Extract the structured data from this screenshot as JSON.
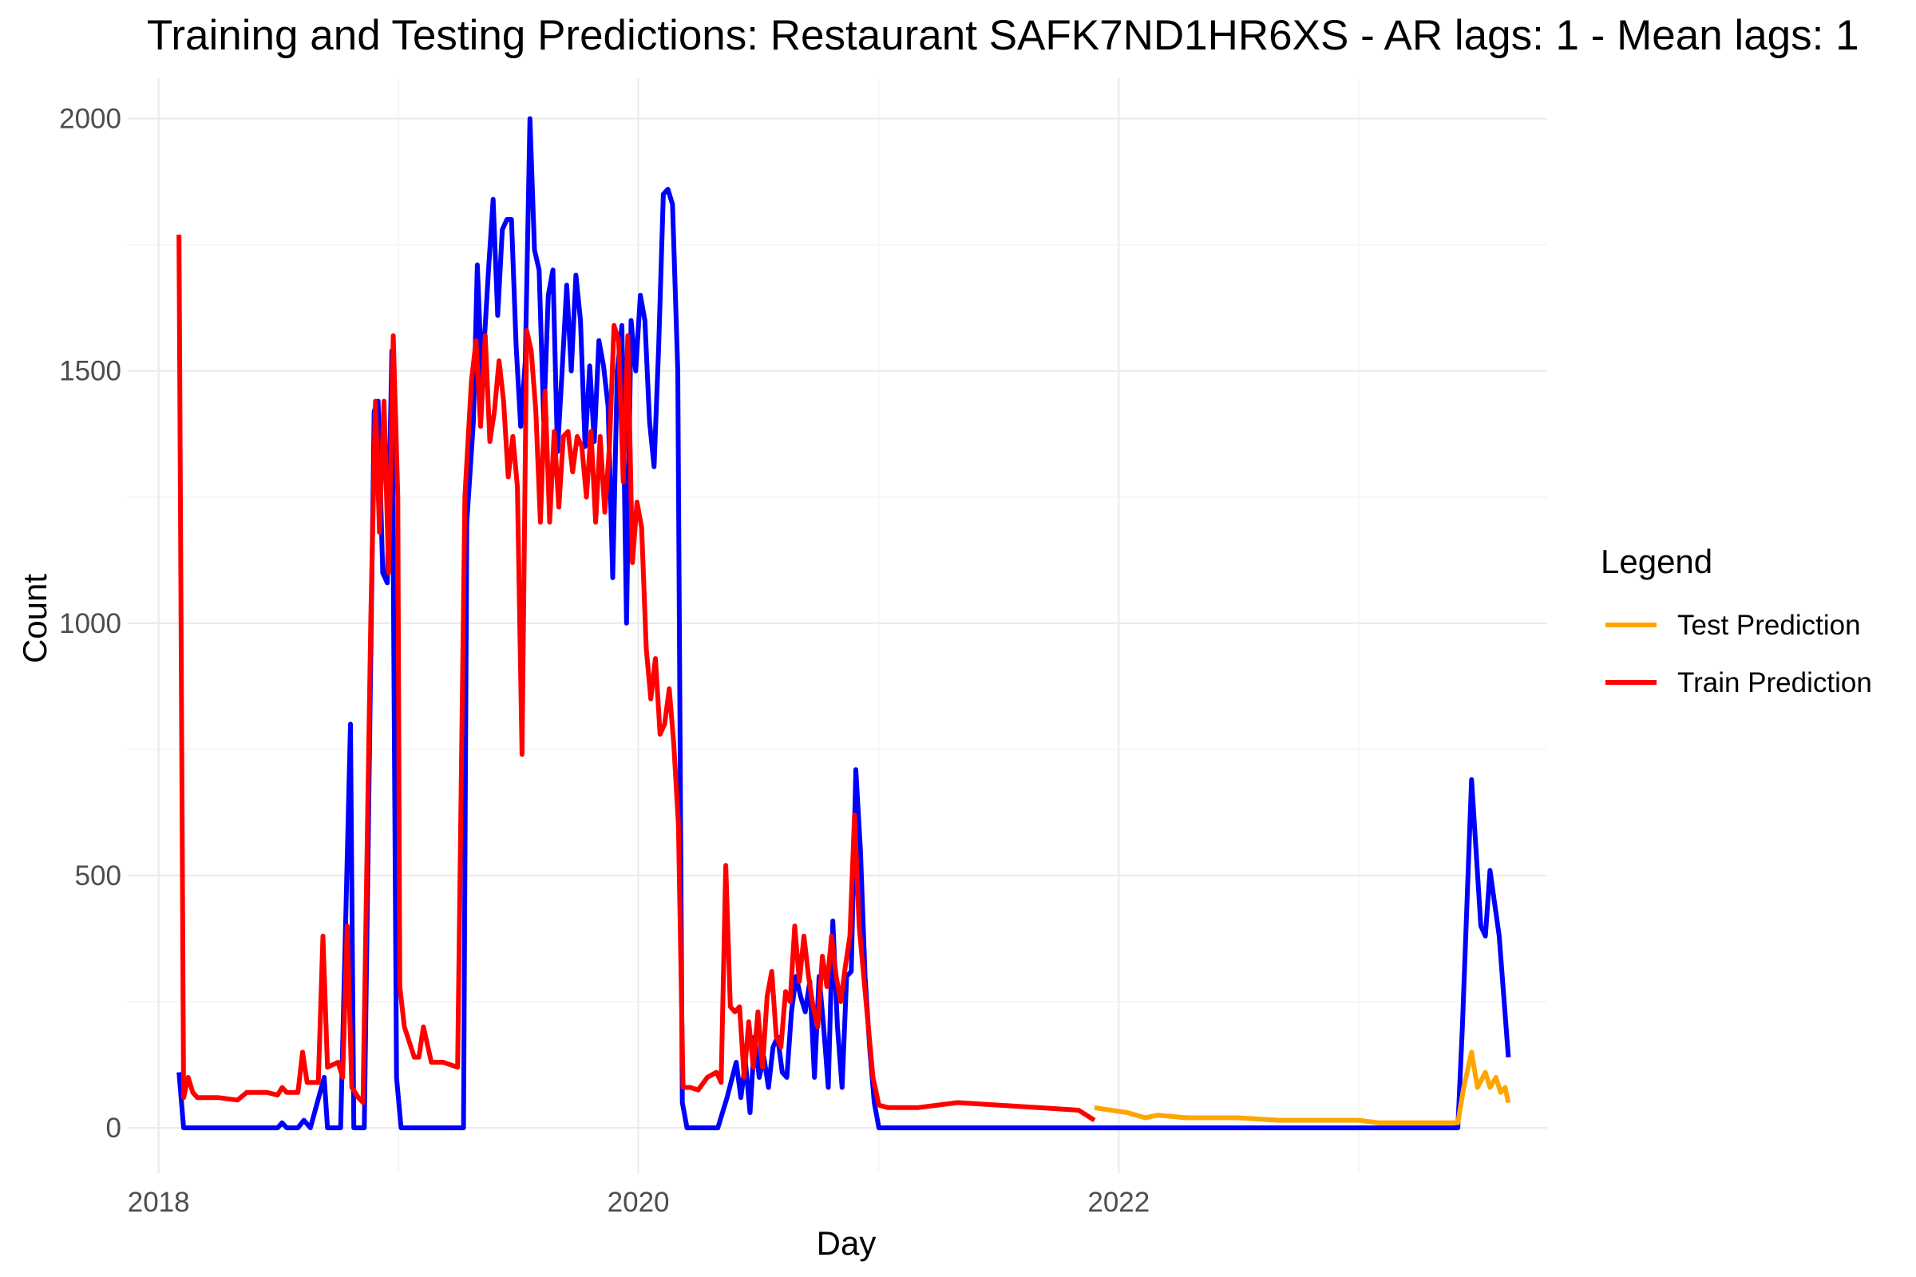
{
  "chart_data": {
    "type": "line",
    "title": "Training and Testing Predictions: Restaurant SAFK7ND1HR6XS - AR lags: 1 - Mean lags: 1",
    "xlabel": "Day",
    "ylabel": "Count",
    "x_type": "date",
    "xlim": [
      "2017-11-15",
      "2023-10-15"
    ],
    "ylim": [
      -90,
      2080
    ],
    "x_ticks": [
      "2018",
      "2020",
      "2022"
    ],
    "x_tick_dates": [
      "2018-01-01",
      "2020-01-01",
      "2022-01-01"
    ],
    "y_ticks": [
      0,
      500,
      1000,
      1500,
      2000
    ],
    "grid": true,
    "legend": {
      "title": "Legend",
      "placement": "right",
      "entries": [
        "Test Prediction",
        "Train Prediction"
      ]
    },
    "series": [
      {
        "key": "actual",
        "color": "#0000ff",
        "points": [
          [
            "2018-02-01",
            110
          ],
          [
            "2018-02-08",
            0
          ],
          [
            "2018-07-01",
            0
          ],
          [
            "2018-07-08",
            10
          ],
          [
            "2018-07-15",
            0
          ],
          [
            "2018-08-01",
            0
          ],
          [
            "2018-08-10",
            15
          ],
          [
            "2018-08-20",
            0
          ],
          [
            "2018-09-10",
            100
          ],
          [
            "2018-09-15",
            0
          ],
          [
            "2018-10-05",
            0
          ],
          [
            "2018-10-20",
            800
          ],
          [
            "2018-10-25",
            0
          ],
          [
            "2018-11-05",
            0
          ],
          [
            "2018-11-10",
            0
          ],
          [
            "2018-11-25",
            1420
          ],
          [
            "2018-12-01",
            1440
          ],
          [
            "2018-12-08",
            1100
          ],
          [
            "2018-12-15",
            1080
          ],
          [
            "2018-12-22",
            1540
          ],
          [
            "2018-12-29",
            100
          ],
          [
            "2019-01-05",
            0
          ],
          [
            "2019-04-10",
            0
          ],
          [
            "2019-04-15",
            1200
          ],
          [
            "2019-04-25",
            1400
          ],
          [
            "2019-05-01",
            1710
          ],
          [
            "2019-05-08",
            1480
          ],
          [
            "2019-05-18",
            1700
          ],
          [
            "2019-05-25",
            1840
          ],
          [
            "2019-06-01",
            1610
          ],
          [
            "2019-06-08",
            1780
          ],
          [
            "2019-06-15",
            1800
          ],
          [
            "2019-06-22",
            1800
          ],
          [
            "2019-06-29",
            1550
          ],
          [
            "2019-07-06",
            1390
          ],
          [
            "2019-07-13",
            1520
          ],
          [
            "2019-07-20",
            2000
          ],
          [
            "2019-07-27",
            1740
          ],
          [
            "2019-08-03",
            1700
          ],
          [
            "2019-08-10",
            1400
          ],
          [
            "2019-08-17",
            1650
          ],
          [
            "2019-08-24",
            1700
          ],
          [
            "2019-08-31",
            1340
          ],
          [
            "2019-09-07",
            1500
          ],
          [
            "2019-09-14",
            1670
          ],
          [
            "2019-09-21",
            1500
          ],
          [
            "2019-09-28",
            1690
          ],
          [
            "2019-10-05",
            1600
          ],
          [
            "2019-10-12",
            1350
          ],
          [
            "2019-10-19",
            1510
          ],
          [
            "2019-10-26",
            1360
          ],
          [
            "2019-11-02",
            1560
          ],
          [
            "2019-11-09",
            1510
          ],
          [
            "2019-11-16",
            1430
          ],
          [
            "2019-11-23",
            1090
          ],
          [
            "2019-11-30",
            1500
          ],
          [
            "2019-12-07",
            1590
          ],
          [
            "2019-12-14",
            1000
          ],
          [
            "2019-12-21",
            1600
          ],
          [
            "2019-12-28",
            1500
          ],
          [
            "2020-01-04",
            1650
          ],
          [
            "2020-01-11",
            1600
          ],
          [
            "2020-01-18",
            1400
          ],
          [
            "2020-01-25",
            1310
          ],
          [
            "2020-02-01",
            1550
          ],
          [
            "2020-02-08",
            1850
          ],
          [
            "2020-02-15",
            1860
          ],
          [
            "2020-02-22",
            1830
          ],
          [
            "2020-03-01",
            1500
          ],
          [
            "2020-03-08",
            50
          ],
          [
            "2020-03-15",
            0
          ],
          [
            "2020-05-01",
            0
          ],
          [
            "2020-05-15",
            60
          ],
          [
            "2020-05-29",
            130
          ],
          [
            "2020-06-05",
            60
          ],
          [
            "2020-06-12",
            130
          ],
          [
            "2020-06-19",
            30
          ],
          [
            "2020-06-26",
            180
          ],
          [
            "2020-07-03",
            100
          ],
          [
            "2020-07-10",
            140
          ],
          [
            "2020-07-17",
            80
          ],
          [
            "2020-07-24",
            160
          ],
          [
            "2020-07-31",
            180
          ],
          [
            "2020-08-07",
            110
          ],
          [
            "2020-08-14",
            100
          ],
          [
            "2020-08-21",
            230
          ],
          [
            "2020-08-28",
            300
          ],
          [
            "2020-09-04",
            260
          ],
          [
            "2020-09-11",
            230
          ],
          [
            "2020-09-18",
            290
          ],
          [
            "2020-09-25",
            100
          ],
          [
            "2020-10-02",
            300
          ],
          [
            "2020-10-09",
            200
          ],
          [
            "2020-10-16",
            80
          ],
          [
            "2020-10-23",
            410
          ],
          [
            "2020-10-30",
            200
          ],
          [
            "2020-11-06",
            80
          ],
          [
            "2020-11-13",
            300
          ],
          [
            "2020-11-20",
            310
          ],
          [
            "2020-11-27",
            710
          ],
          [
            "2020-12-04",
            550
          ],
          [
            "2020-12-11",
            300
          ],
          [
            "2020-12-18",
            160
          ],
          [
            "2020-12-25",
            50
          ],
          [
            "2021-01-01",
            0
          ],
          [
            "2023-06-01",
            0
          ],
          [
            "2023-06-08",
            200
          ],
          [
            "2023-06-22",
            690
          ],
          [
            "2023-07-06",
            400
          ],
          [
            "2023-07-13",
            380
          ],
          [
            "2023-07-20",
            510
          ],
          [
            "2023-08-03",
            380
          ],
          [
            "2023-08-17",
            140
          ]
        ]
      },
      {
        "key": "train",
        "name": "Train Prediction",
        "color": "#ff0000",
        "points": [
          [
            "2018-02-01",
            1770
          ],
          [
            "2018-02-08",
            60
          ],
          [
            "2018-02-15",
            100
          ],
          [
            "2018-02-22",
            70
          ],
          [
            "2018-03-01",
            60
          ],
          [
            "2018-04-01",
            60
          ],
          [
            "2018-05-01",
            55
          ],
          [
            "2018-05-15",
            70
          ],
          [
            "2018-06-15",
            70
          ],
          [
            "2018-07-01",
            65
          ],
          [
            "2018-07-08",
            80
          ],
          [
            "2018-07-15",
            70
          ],
          [
            "2018-08-01",
            70
          ],
          [
            "2018-08-08",
            150
          ],
          [
            "2018-08-15",
            90
          ],
          [
            "2018-09-01",
            90
          ],
          [
            "2018-09-08",
            380
          ],
          [
            "2018-09-15",
            120
          ],
          [
            "2018-10-01",
            130
          ],
          [
            "2018-10-08",
            100
          ],
          [
            "2018-10-15",
            400
          ],
          [
            "2018-10-22",
            80
          ],
          [
            "2018-11-01",
            60
          ],
          [
            "2018-11-08",
            50
          ],
          [
            "2018-11-20",
            1020
          ],
          [
            "2018-11-27",
            1440
          ],
          [
            "2018-12-03",
            1180
          ],
          [
            "2018-12-10",
            1440
          ],
          [
            "2018-12-17",
            1100
          ],
          [
            "2018-12-24",
            1570
          ],
          [
            "2018-12-31",
            1250
          ],
          [
            "2019-01-03",
            280
          ],
          [
            "2019-01-10",
            200
          ],
          [
            "2019-01-25",
            140
          ],
          [
            "2019-02-01",
            140
          ],
          [
            "2019-02-08",
            200
          ],
          [
            "2019-02-20",
            130
          ],
          [
            "2019-03-10",
            130
          ],
          [
            "2019-04-01",
            120
          ],
          [
            "2019-04-12",
            1250
          ],
          [
            "2019-04-22",
            1480
          ],
          [
            "2019-04-29",
            1560
          ],
          [
            "2019-05-06",
            1390
          ],
          [
            "2019-05-13",
            1570
          ],
          [
            "2019-05-20",
            1360
          ],
          [
            "2019-05-27",
            1420
          ],
          [
            "2019-06-03",
            1520
          ],
          [
            "2019-06-10",
            1440
          ],
          [
            "2019-06-17",
            1290
          ],
          [
            "2019-06-24",
            1370
          ],
          [
            "2019-07-01",
            1270
          ],
          [
            "2019-07-08",
            740
          ],
          [
            "2019-07-15",
            1580
          ],
          [
            "2019-07-22",
            1540
          ],
          [
            "2019-07-29",
            1420
          ],
          [
            "2019-08-05",
            1200
          ],
          [
            "2019-08-12",
            1460
          ],
          [
            "2019-08-19",
            1200
          ],
          [
            "2019-08-26",
            1380
          ],
          [
            "2019-09-02",
            1230
          ],
          [
            "2019-09-09",
            1370
          ],
          [
            "2019-09-16",
            1380
          ],
          [
            "2019-09-23",
            1300
          ],
          [
            "2019-09-30",
            1370
          ],
          [
            "2019-10-07",
            1350
          ],
          [
            "2019-10-14",
            1250
          ],
          [
            "2019-10-21",
            1380
          ],
          [
            "2019-10-28",
            1200
          ],
          [
            "2019-11-04",
            1370
          ],
          [
            "2019-11-11",
            1220
          ],
          [
            "2019-11-18",
            1350
          ],
          [
            "2019-11-25",
            1590
          ],
          [
            "2019-12-02",
            1560
          ],
          [
            "2019-12-09",
            1280
          ],
          [
            "2019-12-16",
            1570
          ],
          [
            "2019-12-23",
            1120
          ],
          [
            "2019-12-30",
            1240
          ],
          [
            "2020-01-06",
            1190
          ],
          [
            "2020-01-13",
            950
          ],
          [
            "2020-01-20",
            850
          ],
          [
            "2020-01-27",
            930
          ],
          [
            "2020-02-03",
            780
          ],
          [
            "2020-02-10",
            800
          ],
          [
            "2020-02-17",
            870
          ],
          [
            "2020-02-24",
            760
          ],
          [
            "2020-03-02",
            600
          ],
          [
            "2020-03-09",
            80
          ],
          [
            "2020-03-20",
            80
          ],
          [
            "2020-04-01",
            75
          ],
          [
            "2020-04-15",
            100
          ],
          [
            "2020-04-29",
            110
          ],
          [
            "2020-05-06",
            90
          ],
          [
            "2020-05-13",
            520
          ],
          [
            "2020-05-20",
            240
          ],
          [
            "2020-05-27",
            230
          ],
          [
            "2020-06-03",
            240
          ],
          [
            "2020-06-10",
            100
          ],
          [
            "2020-06-17",
            210
          ],
          [
            "2020-06-24",
            120
          ],
          [
            "2020-07-01",
            230
          ],
          [
            "2020-07-08",
            120
          ],
          [
            "2020-07-15",
            260
          ],
          [
            "2020-07-22",
            310
          ],
          [
            "2020-07-29",
            180
          ],
          [
            "2020-08-05",
            160
          ],
          [
            "2020-08-12",
            270
          ],
          [
            "2020-08-19",
            250
          ],
          [
            "2020-08-26",
            400
          ],
          [
            "2020-09-02",
            290
          ],
          [
            "2020-09-09",
            380
          ],
          [
            "2020-09-16",
            300
          ],
          [
            "2020-09-23",
            240
          ],
          [
            "2020-09-30",
            200
          ],
          [
            "2020-10-07",
            340
          ],
          [
            "2020-10-14",
            280
          ],
          [
            "2020-10-21",
            380
          ],
          [
            "2020-10-28",
            300
          ],
          [
            "2020-11-04",
            250
          ],
          [
            "2020-11-11",
            320
          ],
          [
            "2020-11-18",
            380
          ],
          [
            "2020-11-25",
            620
          ],
          [
            "2020-12-02",
            400
          ],
          [
            "2020-12-09",
            300
          ],
          [
            "2020-12-16",
            200
          ],
          [
            "2020-12-23",
            100
          ],
          [
            "2021-01-01",
            45
          ],
          [
            "2021-01-15",
            40
          ],
          [
            "2021-02-01",
            40
          ],
          [
            "2021-03-01",
            40
          ],
          [
            "2021-04-01",
            45
          ],
          [
            "2021-05-01",
            50
          ],
          [
            "2021-07-01",
            45
          ],
          [
            "2021-09-01",
            40
          ],
          [
            "2021-11-01",
            35
          ],
          [
            "2021-11-25",
            15
          ]
        ]
      },
      {
        "key": "test",
        "name": "Test Prediction",
        "color": "#ffa500",
        "points": [
          [
            "2021-11-25",
            40
          ],
          [
            "2021-12-20",
            35
          ],
          [
            "2022-01-15",
            30
          ],
          [
            "2022-02-10",
            20
          ],
          [
            "2022-03-01",
            25
          ],
          [
            "2022-04-15",
            20
          ],
          [
            "2022-06-01",
            20
          ],
          [
            "2022-07-01",
            20
          ],
          [
            "2022-09-01",
            15
          ],
          [
            "2022-11-01",
            15
          ],
          [
            "2023-01-01",
            15
          ],
          [
            "2023-02-01",
            10
          ],
          [
            "2023-03-01",
            10
          ],
          [
            "2023-05-01",
            10
          ],
          [
            "2023-06-01",
            10
          ],
          [
            "2023-06-10",
            80
          ],
          [
            "2023-06-22",
            150
          ],
          [
            "2023-07-01",
            80
          ],
          [
            "2023-07-13",
            110
          ],
          [
            "2023-07-20",
            80
          ],
          [
            "2023-07-29",
            100
          ],
          [
            "2023-08-05",
            70
          ],
          [
            "2023-08-12",
            80
          ],
          [
            "2023-08-17",
            50
          ]
        ]
      }
    ]
  }
}
